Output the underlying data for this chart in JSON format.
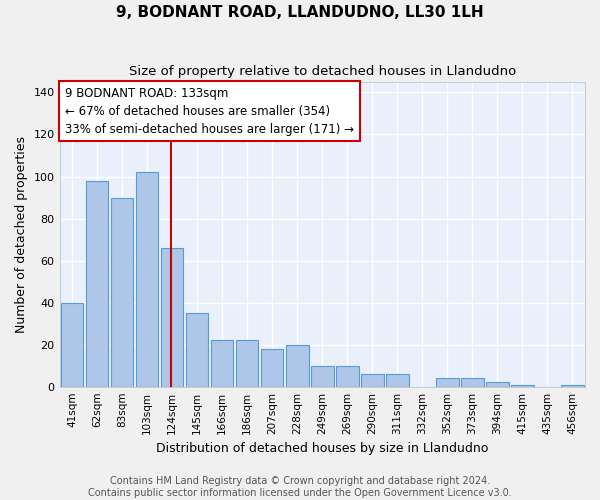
{
  "title": "9, BODNANT ROAD, LLANDUDNO, LL30 1LH",
  "subtitle": "Size of property relative to detached houses in Llandudno",
  "xlabel": "Distribution of detached houses by size in Llandudno",
  "ylabel": "Number of detached properties",
  "categories": [
    "41sqm",
    "62sqm",
    "83sqm",
    "103sqm",
    "124sqm",
    "145sqm",
    "166sqm",
    "186sqm",
    "207sqm",
    "228sqm",
    "249sqm",
    "269sqm",
    "290sqm",
    "311sqm",
    "332sqm",
    "352sqm",
    "373sqm",
    "394sqm",
    "415sqm",
    "435sqm",
    "456sqm"
  ],
  "values": [
    40,
    98,
    90,
    102,
    66,
    35,
    22,
    22,
    18,
    20,
    10,
    10,
    6,
    6,
    0,
    4,
    4,
    2,
    1,
    0,
    1
  ],
  "bar_color": "#aec6e8",
  "bar_edge_color": "#5b9bd5",
  "background_color": "#eaf0fb",
  "grid_color": "#ffffff",
  "vline_color": "#cc0000",
  "box_edge_color": "#cc0000",
  "marker_label": "9 BODNANT ROAD: 133sqm",
  "annotation_line1": "← 67% of detached houses are smaller (354)",
  "annotation_line2": "33% of semi-detached houses are larger (171) →",
  "ylim": [
    0,
    145
  ],
  "yticks": [
    0,
    20,
    40,
    60,
    80,
    100,
    120,
    140
  ],
  "footer_line1": "Contains HM Land Registry data © Crown copyright and database right 2024.",
  "footer_line2": "Contains public sector information licensed under the Open Government Licence v3.0.",
  "fig_bg": "#f0f0f0"
}
